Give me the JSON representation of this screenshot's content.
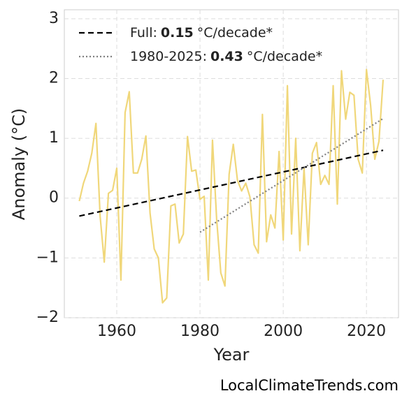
{
  "chart_data": {
    "type": "line",
    "xlabel": "Year",
    "ylabel": "Anomaly (°C)",
    "source": "LocalClimateTrends.com",
    "x": [
      1951,
      1952,
      1953,
      1954,
      1955,
      1956,
      1957,
      1958,
      1959,
      1960,
      1961,
      1962,
      1963,
      1964,
      1965,
      1966,
      1967,
      1968,
      1969,
      1970,
      1971,
      1972,
      1973,
      1974,
      1975,
      1976,
      1977,
      1978,
      1979,
      1980,
      1981,
      1982,
      1983,
      1984,
      1985,
      1986,
      1987,
      1988,
      1989,
      1990,
      1991,
      1992,
      1993,
      1994,
      1995,
      1996,
      1997,
      1998,
      1999,
      2000,
      2001,
      2002,
      2003,
      2004,
      2005,
      2006,
      2007,
      2008,
      2009,
      2010,
      2011,
      2012,
      2013,
      2014,
      2015,
      2016,
      2017,
      2018,
      2019,
      2020,
      2021,
      2022,
      2023,
      2024
    ],
    "values": [
      -0.05,
      0.25,
      0.45,
      0.75,
      1.25,
      -0.3,
      -1.07,
      0.08,
      0.13,
      0.5,
      -1.37,
      1.43,
      1.78,
      0.42,
      0.42,
      0.65,
      1.04,
      -0.25,
      -0.85,
      -1.0,
      -1.75,
      -1.67,
      -0.13,
      -0.1,
      -0.75,
      -0.6,
      1.03,
      0.45,
      0.47,
      -0.02,
      0.03,
      -1.37,
      0.97,
      -0.35,
      -1.25,
      -1.47,
      0.4,
      0.9,
      0.3,
      0.12,
      0.25,
      0.02,
      -0.78,
      -0.92,
      1.4,
      -0.73,
      -0.28,
      -0.5,
      0.78,
      -0.7,
      1.88,
      -0.6,
      1.0,
      -0.88,
      0.5,
      -0.78,
      0.75,
      0.93,
      0.23,
      0.38,
      0.23,
      1.88,
      -0.1,
      2.13,
      1.32,
      1.77,
      1.72,
      0.65,
      0.42,
      2.15,
      1.55,
      0.65,
      0.95,
      1.98
    ],
    "color": "#f0d77a",
    "trends": [
      {
        "label": [
          "Full:",
          "0.15",
          "°C/decade*"
        ],
        "x": [
          1951,
          2024
        ],
        "values": [
          -0.3,
          0.8
        ],
        "color": "#000000",
        "dash": "8 5"
      },
      {
        "label": [
          "1980-2025:",
          "0.43",
          "°C/decade*"
        ],
        "x": [
          1980,
          2024
        ],
        "values": [
          -0.57,
          1.33
        ],
        "color": "#808080",
        "dash": "2 3"
      }
    ],
    "xlim": [
      1947.4,
      2027.7
    ],
    "ylim": [
      -2,
      3.15
    ],
    "xticks": [
      1960,
      1980,
      2000,
      2020
    ],
    "yticks": [
      {
        "value": -2,
        "label": "−2"
      },
      {
        "value": -1,
        "label": "−1"
      },
      0,
      1,
      2,
      3
    ],
    "grid": true,
    "legend": "upper left"
  }
}
